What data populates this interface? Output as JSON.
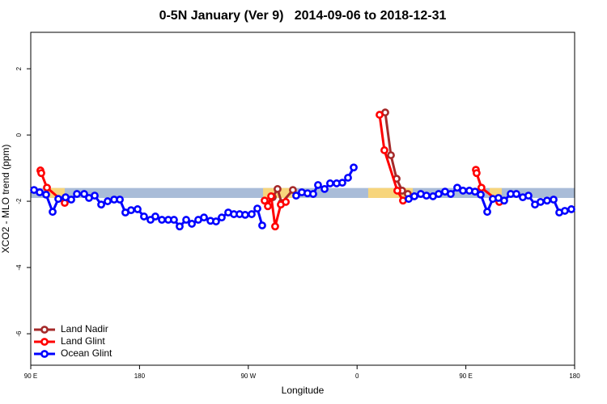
{
  "chart_data": {
    "type": "line",
    "title": "0-5N January (Ver 9)   2014-09-06 to 2018-12-31",
    "x_label": "Longitude",
    "y_label": "XCO2 - MLO trend (ppm)",
    "xlim": [
      90,
      540
    ],
    "xticks": [
      {
        "value": 90,
        "label": "90 E"
      },
      180,
      {
        "value": 270,
        "label": "90 W"
      },
      {
        "value": 360,
        "label": "0"
      },
      {
        "value": 450,
        "label": "90 E"
      },
      180
    ],
    "ylim": [
      -6.95,
      3.1
    ],
    "yticks": [
      -6,
      -4,
      -2,
      0,
      2
    ],
    "grid": false,
    "legend": "bottom-left",
    "band": {
      "range": [
        -1.9,
        -1.6
      ],
      "color": "#a9bcd8",
      "segments": [
        {
          "xlim": [
            101.4,
            118.1
          ],
          "color": "#f7d57c"
        },
        {
          "xlim": [
            282.2,
            309.0
          ],
          "color": "#f7d57c"
        },
        {
          "xlim": [
            369.2,
            406.1
          ],
          "color": "#f7d57c"
        },
        {
          "xlim": [
            469.7,
            479.7
          ],
          "color": "#f7d57c"
        }
      ]
    },
    "series": [
      {
        "name": "Land Nadir",
        "color": "#a52a2a",
        "x": [
          290.2,
          294.2,
          297.6,
          306.9,
          null,
          383.3,
          388.0,
          392.7,
          397.3,
          402.0
        ],
        "values": [
          -1.88,
          -1.63,
          -2.05,
          -1.66,
          null,
          0.68,
          -0.61,
          -1.32,
          -1.68,
          -1.78
        ]
      },
      {
        "name": "Land Glint",
        "color": "#ff0000",
        "x": [
          98.0,
          98.7,
          103.4,
          118.1,
          null,
          283.5,
          286.2,
          288.9,
          292.2,
          296.9,
          301.0,
          null,
          378.6,
          382.6,
          393.3,
          398.0,
          null,
          458.3,
          458.9,
          462.9,
          477.7
        ],
        "values": [
          -1.07,
          -1.15,
          -1.59,
          -2.05,
          null,
          -1.98,
          -2.15,
          -1.85,
          -2.76,
          -2.1,
          -2.02,
          null,
          0.61,
          -0.46,
          -1.68,
          -1.98,
          null,
          -1.05,
          -1.15,
          -1.59,
          -2.02
        ]
      },
      {
        "name": "Ocean Glint",
        "color": "#0000ff",
        "x": [
          92.7,
          97.4,
          102.7,
          108.1,
          112.8,
          118.8,
          123.5,
          128.2,
          134.2,
          138.2,
          142.9,
          148.3,
          153.6,
          159.0,
          163.7,
          168.3,
          173.0,
          178.4,
          183.7,
          189.1,
          193.1,
          198.5,
          203.8,
          208.5,
          213.2,
          218.6,
          223.3,
          228.6,
          233.3,
          238.7,
          243.3,
          248.0,
          253.4,
          258.1,
          262.8,
          267.4,
          272.8,
          277.5,
          281.5,
          null,
          309.6,
          314.3,
          319.0,
          323.7,
          327.7,
          333.1,
          337.7,
          343.1,
          347.8,
          352.5,
          357.2,
          null,
          402.7,
          407.4,
          412.7,
          417.4,
          422.8,
          427.5,
          432.8,
          437.5,
          442.9,
          447.6,
          452.9,
          457.6,
          462.3,
          467.7,
          472.3,
          477.0,
          481.7,
          487.1,
          491.8,
          497.1,
          501.8,
          507.2,
          511.8,
          517.2,
          522.6,
          527.3,
          531.9,
          537.3
        ],
        "values": [
          -1.66,
          -1.73,
          -1.8,
          -2.32,
          -1.93,
          -1.88,
          -1.95,
          -1.78,
          -1.78,
          -1.9,
          -1.83,
          -2.1,
          -2.0,
          -1.95,
          -1.95,
          -2.34,
          -2.27,
          -2.24,
          -2.46,
          -2.56,
          -2.46,
          -2.56,
          -2.56,
          -2.56,
          -2.76,
          -2.56,
          -2.68,
          -2.56,
          -2.49,
          -2.59,
          -2.61,
          -2.49,
          -2.34,
          -2.39,
          -2.39,
          -2.41,
          -2.39,
          -2.22,
          -2.73,
          null,
          -1.83,
          -1.73,
          -1.76,
          -1.78,
          -1.51,
          -1.63,
          -1.46,
          -1.46,
          -1.44,
          -1.29,
          -0.98,
          null,
          -1.93,
          -1.85,
          -1.78,
          -1.83,
          -1.85,
          -1.78,
          -1.71,
          -1.78,
          -1.59,
          -1.68,
          -1.68,
          -1.71,
          -1.8,
          -2.32,
          -1.93,
          -1.9,
          -1.98,
          -1.78,
          -1.78,
          -1.88,
          -1.83,
          -2.1,
          -2.02,
          -1.98,
          -1.95,
          -2.34,
          -2.29,
          -2.24
        ]
      }
    ]
  }
}
